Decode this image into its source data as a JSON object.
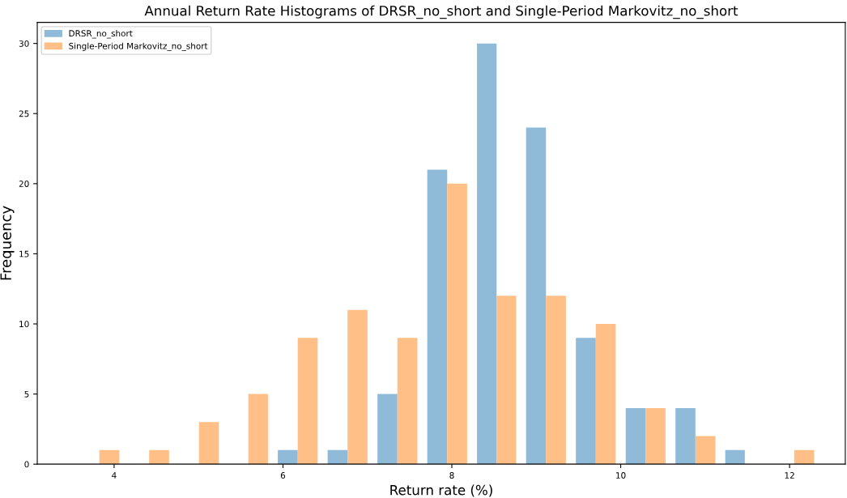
{
  "chart_data": {
    "type": "histogram",
    "title": "Annual Return Rate Histograms of DRSR_no_short and Single-Period Markovitz_no_short",
    "xlabel": "Return rate (%)",
    "ylabel": "Frequency",
    "bins": [
      3.53,
      4.12,
      4.71,
      5.3,
      5.88,
      6.47,
      7.06,
      7.65,
      8.24,
      8.82,
      9.41,
      10.0,
      10.59,
      11.18,
      11.76,
      12.35
    ],
    "series": [
      {
        "name": "DRSR_no_short",
        "color": "#8fbbd9",
        "values": [
          0,
          0,
          0,
          0,
          1,
          1,
          5,
          21,
          30,
          24,
          9,
          4,
          4,
          1,
          0
        ]
      },
      {
        "name": "Single-Period Markovitz_no_short",
        "color": "#ffbf86",
        "values": [
          1,
          1,
          3,
          5,
          9,
          11,
          9,
          20,
          12,
          12,
          10,
          4,
          2,
          0,
          1
        ]
      }
    ],
    "xlim": [
      3.09,
      12.66
    ],
    "ylim": [
      0,
      31.5
    ],
    "xticks": [
      4,
      6,
      8,
      10,
      12
    ],
    "yticks": [
      0,
      5,
      10,
      15,
      20,
      25,
      30
    ],
    "grid": false,
    "legend": "top left"
  }
}
